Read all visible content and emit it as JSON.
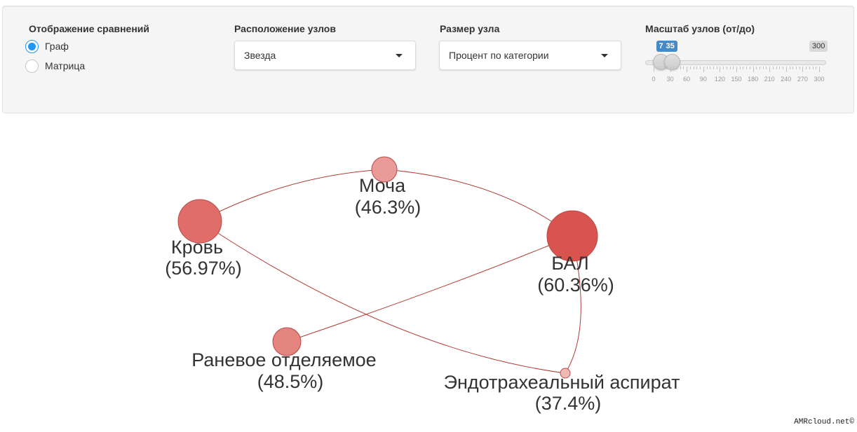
{
  "controls": {
    "display": {
      "label": "Отображение сравнений",
      "options": [
        {
          "label": "Граф",
          "checked": true
        },
        {
          "label": "Матрица",
          "checked": false
        }
      ]
    },
    "layout": {
      "label": "Расположение узлов",
      "value": "Звезда"
    },
    "node_size": {
      "label": "Размер узла",
      "value": "Процент по категории"
    },
    "scale": {
      "label": "Масштаб узлов (от/до)",
      "min": 0,
      "max": 300,
      "from": 7,
      "to": 35,
      "from_label": "7",
      "to_label": "35",
      "max_label": "300",
      "tick_labels": [
        "0",
        "30",
        "60",
        "90",
        "120",
        "150",
        "180",
        "210",
        "240",
        "270",
        "300"
      ]
    }
  },
  "graph": {
    "nodes": [
      {
        "id": "moча",
        "name": "Моча",
        "pct": "(46.3%)",
        "color": "#e89b98"
      },
      {
        "id": "krov",
        "name": "Кровь",
        "pct": "(56.97%)",
        "color": "#e06d69"
      },
      {
        "id": "bal",
        "name": "БАЛ",
        "pct": "(60.36%)",
        "color": "#d9534f"
      },
      {
        "id": "ranevoe",
        "name": "Раневое отделяемое",
        "pct": "(48.5%)",
        "color": "#e4847f"
      },
      {
        "id": "endo",
        "name": "Эндотрахеальный аспират",
        "pct": "(37.4%)",
        "color": "#f0b8b5"
      }
    ],
    "edge_color": "#b03a35"
  },
  "watermark": "AMRcloud.net©"
}
